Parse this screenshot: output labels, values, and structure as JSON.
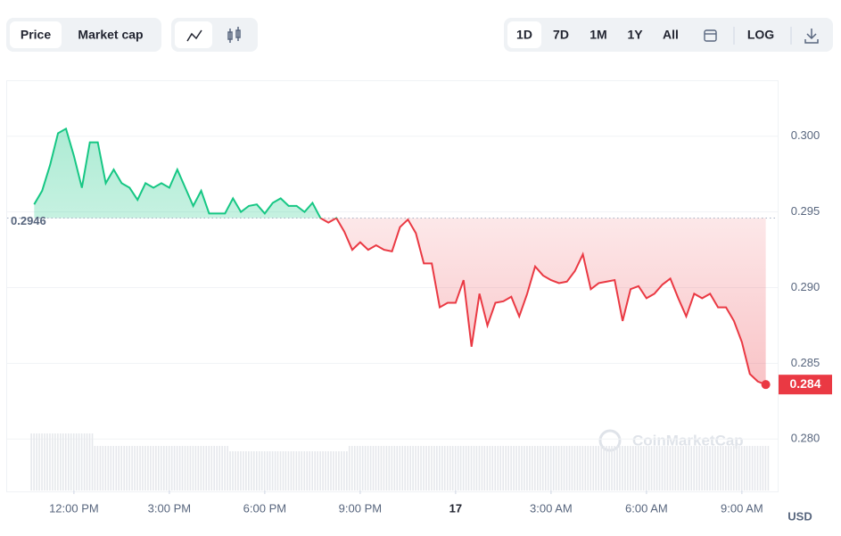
{
  "controls": {
    "metric": [
      "Price",
      "Market cap"
    ],
    "ranges": [
      "1D",
      "7D",
      "1M",
      "1Y",
      "All"
    ],
    "log": "LOG"
  },
  "chart_data": {
    "type": "line",
    "currency": "USD",
    "watermark": "CoinMarketCap",
    "values": [
      0.2955,
      0.2964,
      0.2981,
      0.3002,
      0.3005,
      0.2987,
      0.2966,
      0.2996,
      0.2996,
      0.2969,
      0.2978,
      0.2969,
      0.2966,
      0.2958,
      0.2969,
      0.2966,
      0.2969,
      0.2966,
      0.2978,
      0.2966,
      0.2954,
      0.2964,
      0.2949,
      0.2949,
      0.2949,
      0.2959,
      0.295,
      0.2954,
      0.2955,
      0.2949,
      0.2956,
      0.2959,
      0.2954,
      0.2954,
      0.295,
      0.2956,
      0.2946,
      0.2943,
      0.2946,
      0.2937,
      0.2925,
      0.293,
      0.2925,
      0.2928,
      0.2925,
      0.2924,
      0.294,
      0.2945,
      0.2936,
      0.2916,
      0.2916,
      0.2887,
      0.289,
      0.289,
      0.2905,
      0.2861,
      0.2896,
      0.2875,
      0.289,
      0.2891,
      0.2894,
      0.2881,
      0.2896,
      0.2914,
      0.2908,
      0.2905,
      0.2903,
      0.2904,
      0.2911,
      0.2922,
      0.2899,
      0.2903,
      0.2904,
      0.2905,
      0.2878,
      0.2899,
      0.2901,
      0.2893,
      0.2896,
      0.2902,
      0.2906,
      0.2893,
      0.2881,
      0.2896,
      0.2893,
      0.2896,
      0.2887,
      0.2887,
      0.2878,
      0.2864,
      0.2843,
      0.2838,
      0.2836
    ],
    "reference": 0.2946,
    "last_value_label": "0.284",
    "up_color": "#16c784",
    "down_color": "#ea3943",
    "xlim": [
      -3.4,
      93.5
    ],
    "ylim": [
      0.2766,
      0.3037
    ],
    "xticks": [
      {
        "value": 5,
        "label": "12:00 PM"
      },
      {
        "value": 17,
        "label": "3:00 PM"
      },
      {
        "value": 29,
        "label": "6:00 PM"
      },
      {
        "value": 41,
        "label": "9:00 PM"
      },
      {
        "value": 53,
        "label": "17"
      },
      {
        "value": 65,
        "label": "3:00 AM"
      },
      {
        "value": 77,
        "label": "6:00 AM"
      },
      {
        "value": 89,
        "label": "9:00 AM"
      }
    ],
    "yticks": [
      {
        "value": 0.28,
        "label": "0.280"
      },
      0.285,
      {
        "value": 0.29,
        "label": "0.290"
      },
      0.295,
      {
        "value": 0.3,
        "label": "0.300"
      }
    ],
    "grid": true
  }
}
